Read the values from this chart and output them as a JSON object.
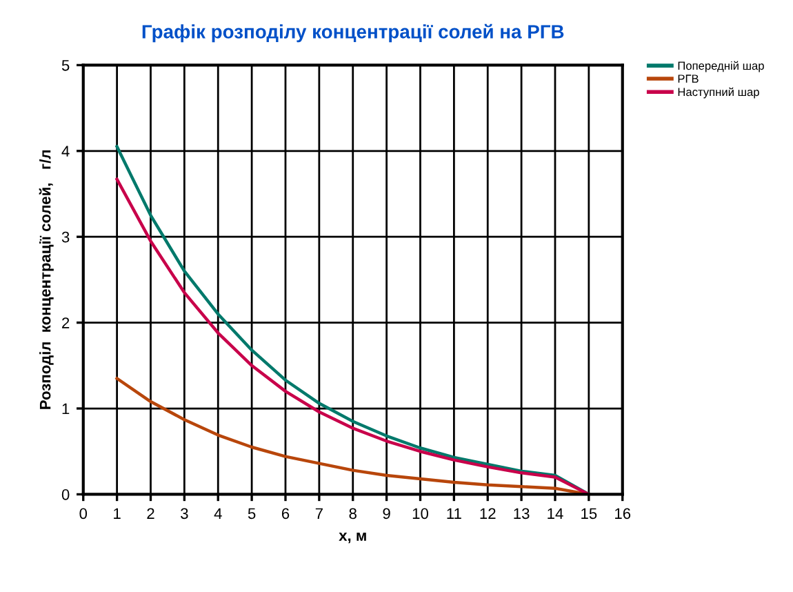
{
  "chart_data": {
    "type": "line",
    "title": "Графік розподілу концентрації солей на РГВ",
    "xlabel": "x, м",
    "ylabel": "Розподіл  концентрації солей,   г/л",
    "x": [
      1,
      2,
      3,
      4,
      5,
      6,
      7,
      8,
      9,
      10,
      11,
      12,
      13,
      14,
      15
    ],
    "series": [
      {
        "name": "Попередній шар",
        "color": "#00796b",
        "values": [
          4.05,
          3.25,
          2.6,
          2.1,
          1.68,
          1.33,
          1.06,
          0.85,
          0.68,
          0.54,
          0.43,
          0.35,
          0.27,
          0.22,
          0
        ]
      },
      {
        "name": "РГВ",
        "color": "#b8460b",
        "values": [
          1.35,
          1.08,
          0.87,
          0.69,
          0.55,
          0.44,
          0.36,
          0.28,
          0.22,
          0.18,
          0.14,
          0.11,
          0.09,
          0.07,
          0
        ]
      },
      {
        "name": "Наступний шар",
        "color": "#c8004a",
        "values": [
          3.67,
          2.95,
          2.35,
          1.88,
          1.5,
          1.2,
          0.96,
          0.77,
          0.62,
          0.5,
          0.4,
          0.32,
          0.25,
          0.2,
          0
        ]
      }
    ],
    "xlim": [
      0,
      16
    ],
    "xticks": [
      0,
      1,
      2,
      3,
      4,
      5,
      6,
      7,
      8,
      9,
      10,
      11,
      12,
      13,
      14,
      15,
      16
    ],
    "ylim": [
      0,
      5
    ],
    "yticks": [
      0,
      1,
      2,
      3,
      4,
      5
    ],
    "grid": true,
    "legend": "top right",
    "marker": "none",
    "line_style": "solid"
  }
}
